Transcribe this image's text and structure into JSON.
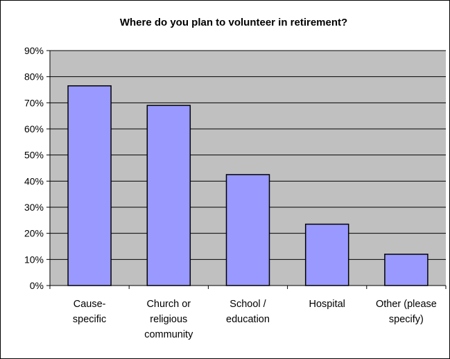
{
  "chart_data": {
    "type": "bar",
    "title": "Where do you plan to volunteer in retirement?",
    "xlabel": "",
    "ylabel": "",
    "categories": [
      [
        "Cause-",
        "specific"
      ],
      [
        "Church or",
        "religious",
        "community"
      ],
      [
        "School /",
        "education"
      ],
      [
        "Hospital"
      ],
      [
        "Other (please",
        "specify)"
      ]
    ],
    "values": [
      76.5,
      69,
      42.5,
      23.5,
      12
    ],
    "ylim": [
      0,
      90
    ],
    "yticks": [
      "0%",
      "10%",
      "20%",
      "30%",
      "40%",
      "50%",
      "60%",
      "70%",
      "80%",
      "90%"
    ],
    "grid": true,
    "legend": "none",
    "colors": {
      "plot_background": "#c0c0c0",
      "bar_fill": "#9999ff",
      "bar_stroke": "#000000",
      "gridline": "#000000"
    }
  }
}
